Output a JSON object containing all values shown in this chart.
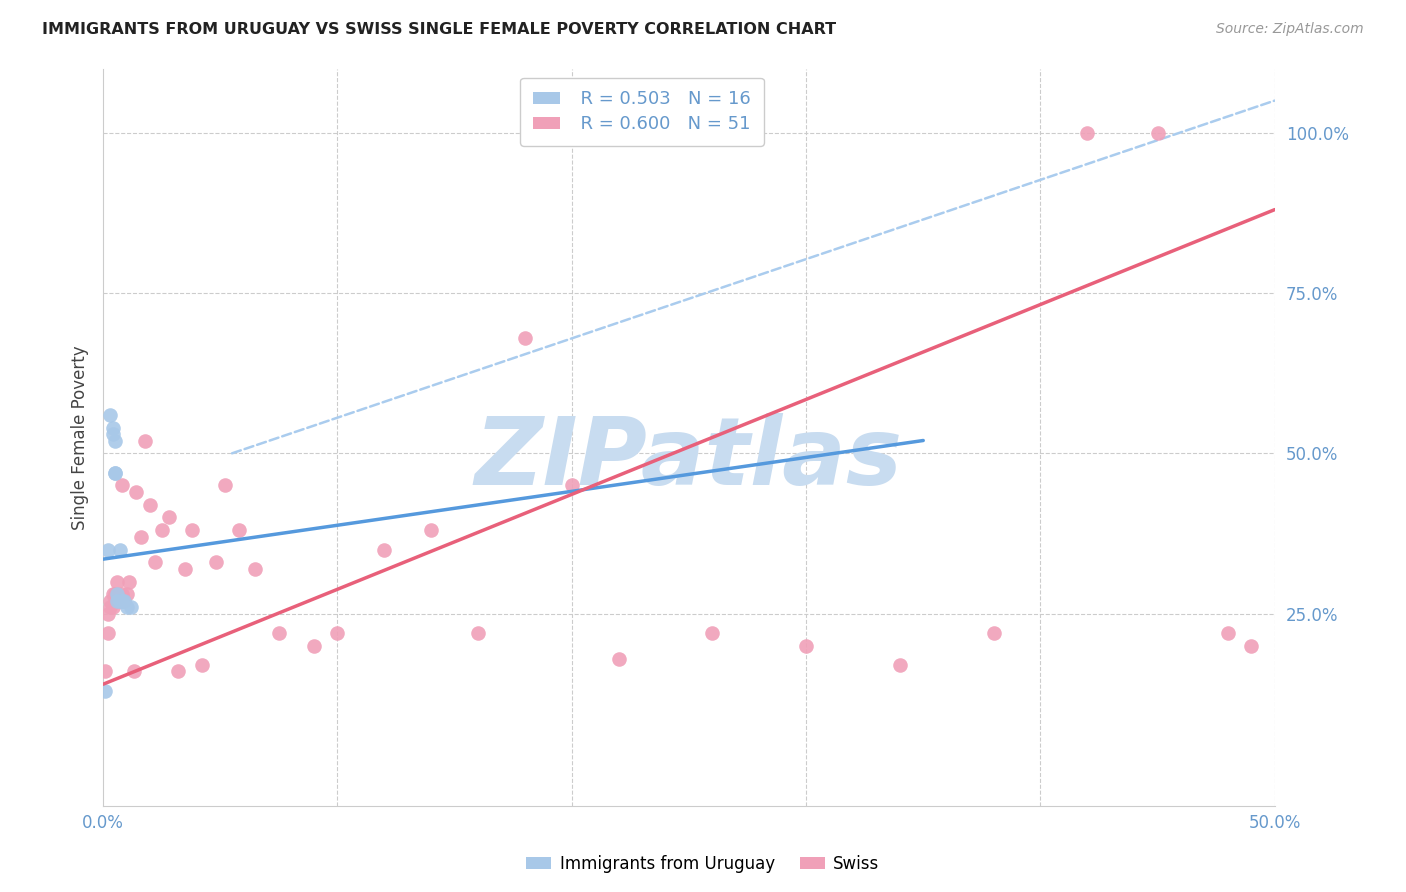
{
  "title": "IMMIGRANTS FROM URUGUAY VS SWISS SINGLE FEMALE POVERTY CORRELATION CHART",
  "source": "Source: ZipAtlas.com",
  "ylabel": "Single Female Poverty",
  "xlim": [
    0.0,
    0.5
  ],
  "ylim": [
    -0.05,
    1.1
  ],
  "xticks": [
    0.0,
    0.1,
    0.2,
    0.3,
    0.4,
    0.5
  ],
  "xticklabels": [
    "0.0%",
    "",
    "",
    "",
    "",
    "50.0%"
  ],
  "yticks_right": [
    0.25,
    0.5,
    0.75,
    1.0
  ],
  "ytick_labels_right": [
    "25.0%",
    "50.0%",
    "75.0%",
    "100.0%"
  ],
  "legend_R": [
    "0.503",
    "0.600"
  ],
  "legend_N": [
    "16",
    "51"
  ],
  "blue_color": "#A8C8E8",
  "pink_color": "#F0A0B8",
  "blue_line_color": "#5599DD",
  "pink_line_color": "#E8607A",
  "dashed_line_color": "#AACCEE",
  "watermark": "ZIPatlas",
  "watermark_color": "#C8DCF0",
  "grid_color": "#CCCCCC",
  "title_color": "#222222",
  "axis_label_color": "#444444",
  "right_axis_color": "#6699CC",
  "uruguay_x": [
    0.001,
    0.003,
    0.004,
    0.004,
    0.005,
    0.005,
    0.005,
    0.006,
    0.006,
    0.007,
    0.007,
    0.008,
    0.009,
    0.01,
    0.012,
    0.002
  ],
  "uruguay_y": [
    0.13,
    0.56,
    0.54,
    0.53,
    0.52,
    0.47,
    0.47,
    0.28,
    0.27,
    0.35,
    0.27,
    0.27,
    0.27,
    0.26,
    0.26,
    0.35
  ],
  "swiss_x": [
    0.001,
    0.002,
    0.002,
    0.003,
    0.003,
    0.004,
    0.004,
    0.005,
    0.005,
    0.006,
    0.006,
    0.006,
    0.007,
    0.008,
    0.008,
    0.009,
    0.01,
    0.011,
    0.013,
    0.014,
    0.016,
    0.018,
    0.02,
    0.022,
    0.025,
    0.028,
    0.032,
    0.035,
    0.038,
    0.042,
    0.048,
    0.052,
    0.058,
    0.065,
    0.075,
    0.09,
    0.1,
    0.12,
    0.14,
    0.16,
    0.18,
    0.2,
    0.22,
    0.26,
    0.3,
    0.34,
    0.38,
    0.42,
    0.45,
    0.48,
    0.49
  ],
  "swiss_y": [
    0.16,
    0.25,
    0.22,
    0.27,
    0.26,
    0.26,
    0.28,
    0.27,
    0.28,
    0.28,
    0.27,
    0.3,
    0.27,
    0.28,
    0.45,
    0.27,
    0.28,
    0.3,
    0.16,
    0.44,
    0.37,
    0.52,
    0.42,
    0.33,
    0.38,
    0.4,
    0.16,
    0.32,
    0.38,
    0.17,
    0.33,
    0.45,
    0.38,
    0.32,
    0.22,
    0.2,
    0.22,
    0.35,
    0.38,
    0.22,
    0.68,
    0.45,
    0.18,
    0.22,
    0.2,
    0.17,
    0.22,
    1.0,
    1.0,
    0.22,
    0.2
  ],
  "blue_line_x0": 0.0,
  "blue_line_y0": 0.335,
  "blue_line_x1": 0.35,
  "blue_line_y1": 0.52,
  "pink_line_x0": 0.0,
  "pink_line_y0": 0.14,
  "pink_line_x1": 0.5,
  "pink_line_y1": 0.88,
  "dash_line_x0": 0.055,
  "dash_line_y0": 0.5,
  "dash_line_x1": 0.5,
  "dash_line_y1": 1.05
}
